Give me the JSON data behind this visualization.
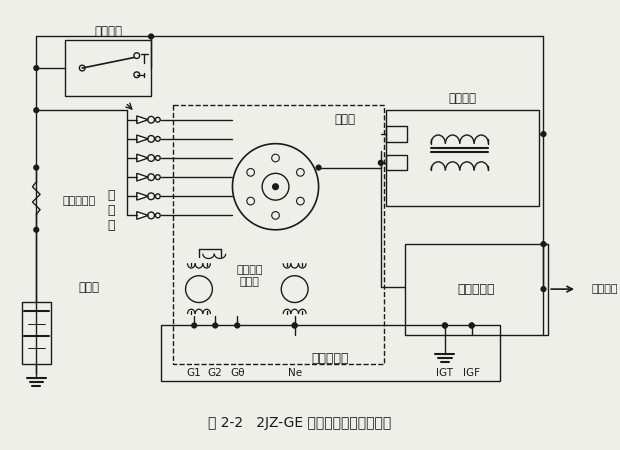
{
  "title": "图 2-2   2JZ-GE 发动机点火系统电路图",
  "bg_color": "#efefea",
  "line_color": "#1a1a1a",
  "labels": {
    "ignition_switch": "点火开关",
    "distributor": "分电器",
    "spark_plugs_v": "火\n花\n塞",
    "fuse": "电源熔断丝",
    "battery": "蓄电池",
    "ignition_coil": "点火线圈",
    "ignition_controller": "点火控制器",
    "crankshaft_sensor": "曲轴位置\n传感器",
    "ecu": "发动机电脑",
    "tach": "接转速表",
    "G1": "G1",
    "G2": "G2",
    "G0": "Gθ",
    "Ne": "Ne",
    "IGT": "IGT",
    "IGF": "IGF"
  }
}
